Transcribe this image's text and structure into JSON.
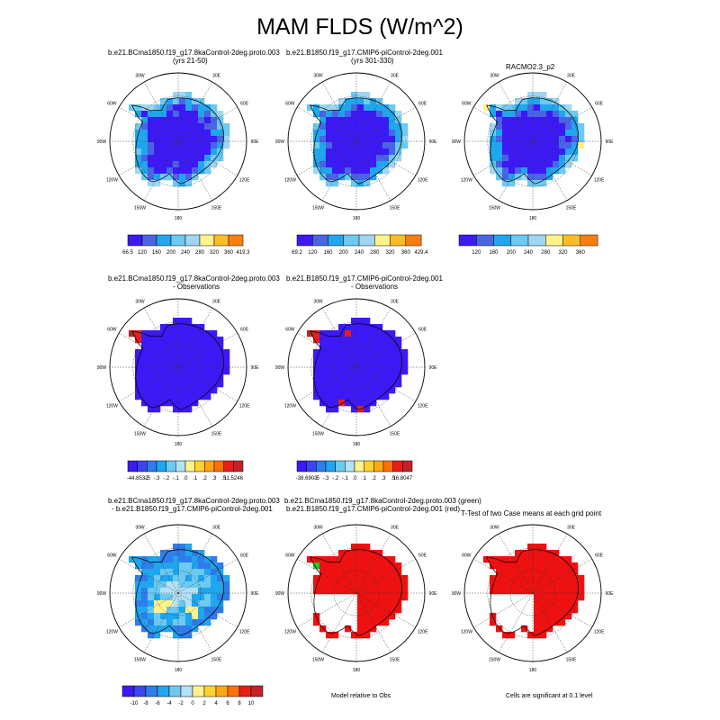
{
  "title": "MAM FLDS (W/m^2)",
  "colors": {
    "abs": [
      "#3c19f5",
      "#4a64e6",
      "#20a6ee",
      "#6cc9f0",
      "#9fd6f2",
      "#fff38a",
      "#ffbd24",
      "#ff7d0e",
      "#ec1c19",
      "#c42228"
    ],
    "diff": [
      "#3c19f5",
      "#3a45ee",
      "#2f7ceb",
      "#20a6ee",
      "#6cc9f0",
      "#b3e1f5",
      "#fff38a",
      "#ffd22f",
      "#ffa713",
      "#ff6f0a",
      "#ea1c19",
      "#c42228"
    ],
    "sig_red": "#ee1111",
    "sig_green": "#22cc22"
  },
  "panels": [
    {
      "id": "p1",
      "title_lines": [
        "b.e21.BCma1850.f19_g17.8kaControl-2deg.proto.003",
        "(yrs 21-50)"
      ],
      "colorbar_labels": [
        "66.5",
        "120",
        "160",
        "200",
        "240",
        "280",
        "320",
        "360",
        "419.3"
      ]
    },
    {
      "id": "p2",
      "title_lines": [
        "b.e21.B1850.f19_g17.CMIP6-piControl-2deg.001",
        "(yrs 301-330)"
      ],
      "colorbar_labels": [
        "69.2",
        "120",
        "160",
        "200",
        "240",
        "280",
        "320",
        "360",
        "429.4"
      ]
    },
    {
      "id": "p3",
      "title_lines": [
        "RACMO2.3_p2"
      ],
      "colorbar_labels": [
        "120",
        "160",
        "200",
        "240",
        "280",
        "320",
        "360"
      ]
    },
    {
      "id": "p4",
      "title_lines": [
        "b.e21.BCma1850.f19_g17.8kaControl-2deg.proto.003",
        "- Observations"
      ],
      "colorbar_labels": [
        "-44.8532",
        "-.5",
        "-.3",
        "-.2",
        "-.1",
        ".0",
        ".1",
        ".2",
        ".3",
        ".5",
        "11.5246"
      ]
    },
    {
      "id": "p5",
      "title_lines": [
        "b.e21.B1850.f19_g17.CMIP6-piControl-2deg.001",
        "- Observations"
      ],
      "colorbar_labels": [
        "-38.6903",
        "-.5",
        "-.3",
        "-.2",
        "-.1",
        ".0",
        ".1",
        ".2",
        ".3",
        ".5",
        "16.8047"
      ]
    },
    {
      "id": "p6",
      "title_lines": [
        "b.e21.BCma1850.f19_g17.8kaControl-2deg.proto.003",
        "- b.e21.B1850.f19_g17.CMIP6-piControl-2deg.001"
      ],
      "colorbar_labels": [
        "-10",
        "-8",
        "-6",
        "-4",
        "-2",
        "0",
        "2",
        "4",
        "6",
        "8",
        "10"
      ]
    },
    {
      "id": "p7",
      "title_lines": [
        "b.e21.BCma1850.f19_g17.8kaControl-2deg.proto.003 (green)",
        "b.e21.B1850.f19_g17.CMIP6-piControl-2deg.001 (red)"
      ],
      "note": "Model relative to Obs"
    },
    {
      "id": "p8",
      "title_lines": [
        "T-Test of two Case means at each grid point"
      ],
      "note": "Cells are significant at 0.1 level"
    }
  ],
  "map_labels": {
    "lon": [
      "30W",
      "30E",
      "60W",
      "60E",
      "90W",
      "90E",
      "120W",
      "120E",
      "150W",
      "150E",
      "180"
    ]
  },
  "chart_data": [
    {
      "type": "heatmap",
      "panel": "p1",
      "projection": "south-polar-stereographic",
      "variable": "FLDS",
      "season": "MAM",
      "units": "W/m^2",
      "levels": [
        66.5,
        120,
        160,
        200,
        240,
        280,
        320,
        360,
        419.3
      ]
    },
    {
      "type": "heatmap",
      "panel": "p2",
      "projection": "south-polar-stereographic",
      "variable": "FLDS",
      "season": "MAM",
      "units": "W/m^2",
      "levels": [
        69.2,
        120,
        160,
        200,
        240,
        280,
        320,
        360,
        429.4
      ]
    },
    {
      "type": "heatmap",
      "panel": "p3",
      "projection": "south-polar-stereographic",
      "variable": "FLDS",
      "season": "MAM",
      "units": "W/m^2",
      "levels": [
        120,
        160,
        200,
        240,
        280,
        320,
        360
      ]
    },
    {
      "type": "heatmap",
      "panel": "p4",
      "projection": "south-polar-stereographic",
      "levels": [
        -44.8532,
        -0.5,
        -0.3,
        -0.2,
        -0.1,
        0,
        0.1,
        0.2,
        0.3,
        0.5,
        11.5246
      ]
    },
    {
      "type": "heatmap",
      "panel": "p5",
      "projection": "south-polar-stereographic",
      "levels": [
        -38.6903,
        -0.5,
        -0.3,
        -0.2,
        -0.1,
        0,
        0.1,
        0.2,
        0.3,
        0.5,
        16.8047
      ]
    },
    {
      "type": "heatmap",
      "panel": "p6",
      "projection": "south-polar-stereographic",
      "levels": [
        -10,
        -8,
        -6,
        -4,
        -2,
        0,
        2,
        4,
        6,
        8,
        10
      ]
    },
    {
      "type": "heatmap",
      "panel": "p7",
      "projection": "south-polar-stereographic"
    },
    {
      "type": "heatmap",
      "panel": "p8",
      "projection": "south-polar-stereographic"
    }
  ]
}
